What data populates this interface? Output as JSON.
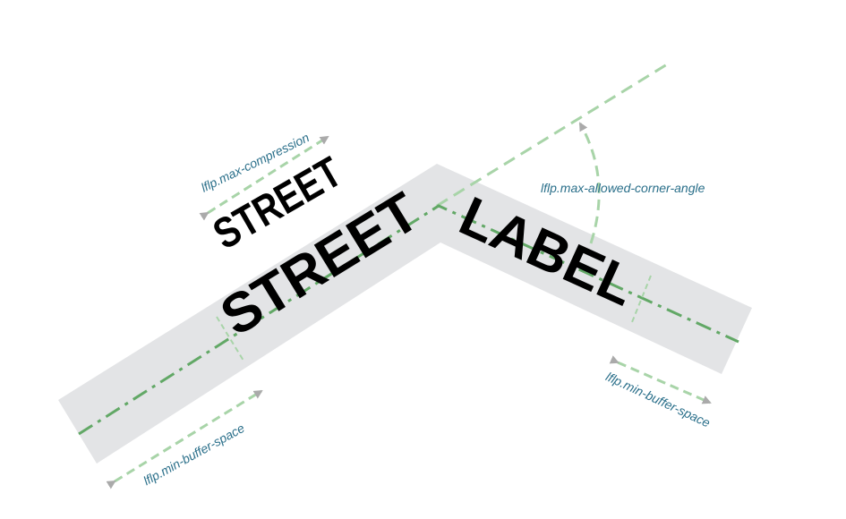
{
  "labels": {
    "street_upper": "STREET",
    "street_main": "STREET",
    "label_word": "LABEL",
    "max_compression": "lflp.max-compression",
    "max_allowed_corner_angle": "lflp.max-allowed-corner-angle",
    "min_buffer_space_left": "lflp.min-buffer-space",
    "min_buffer_space_right": "lflp.min-buffer-space"
  },
  "colors": {
    "road": "#e3e4e6",
    "centerline": "#62a866",
    "guide": "#a8d4a8",
    "arrow": "#aaaaaa",
    "text_param": "#2a6f8a",
    "text_street": "#000000"
  }
}
